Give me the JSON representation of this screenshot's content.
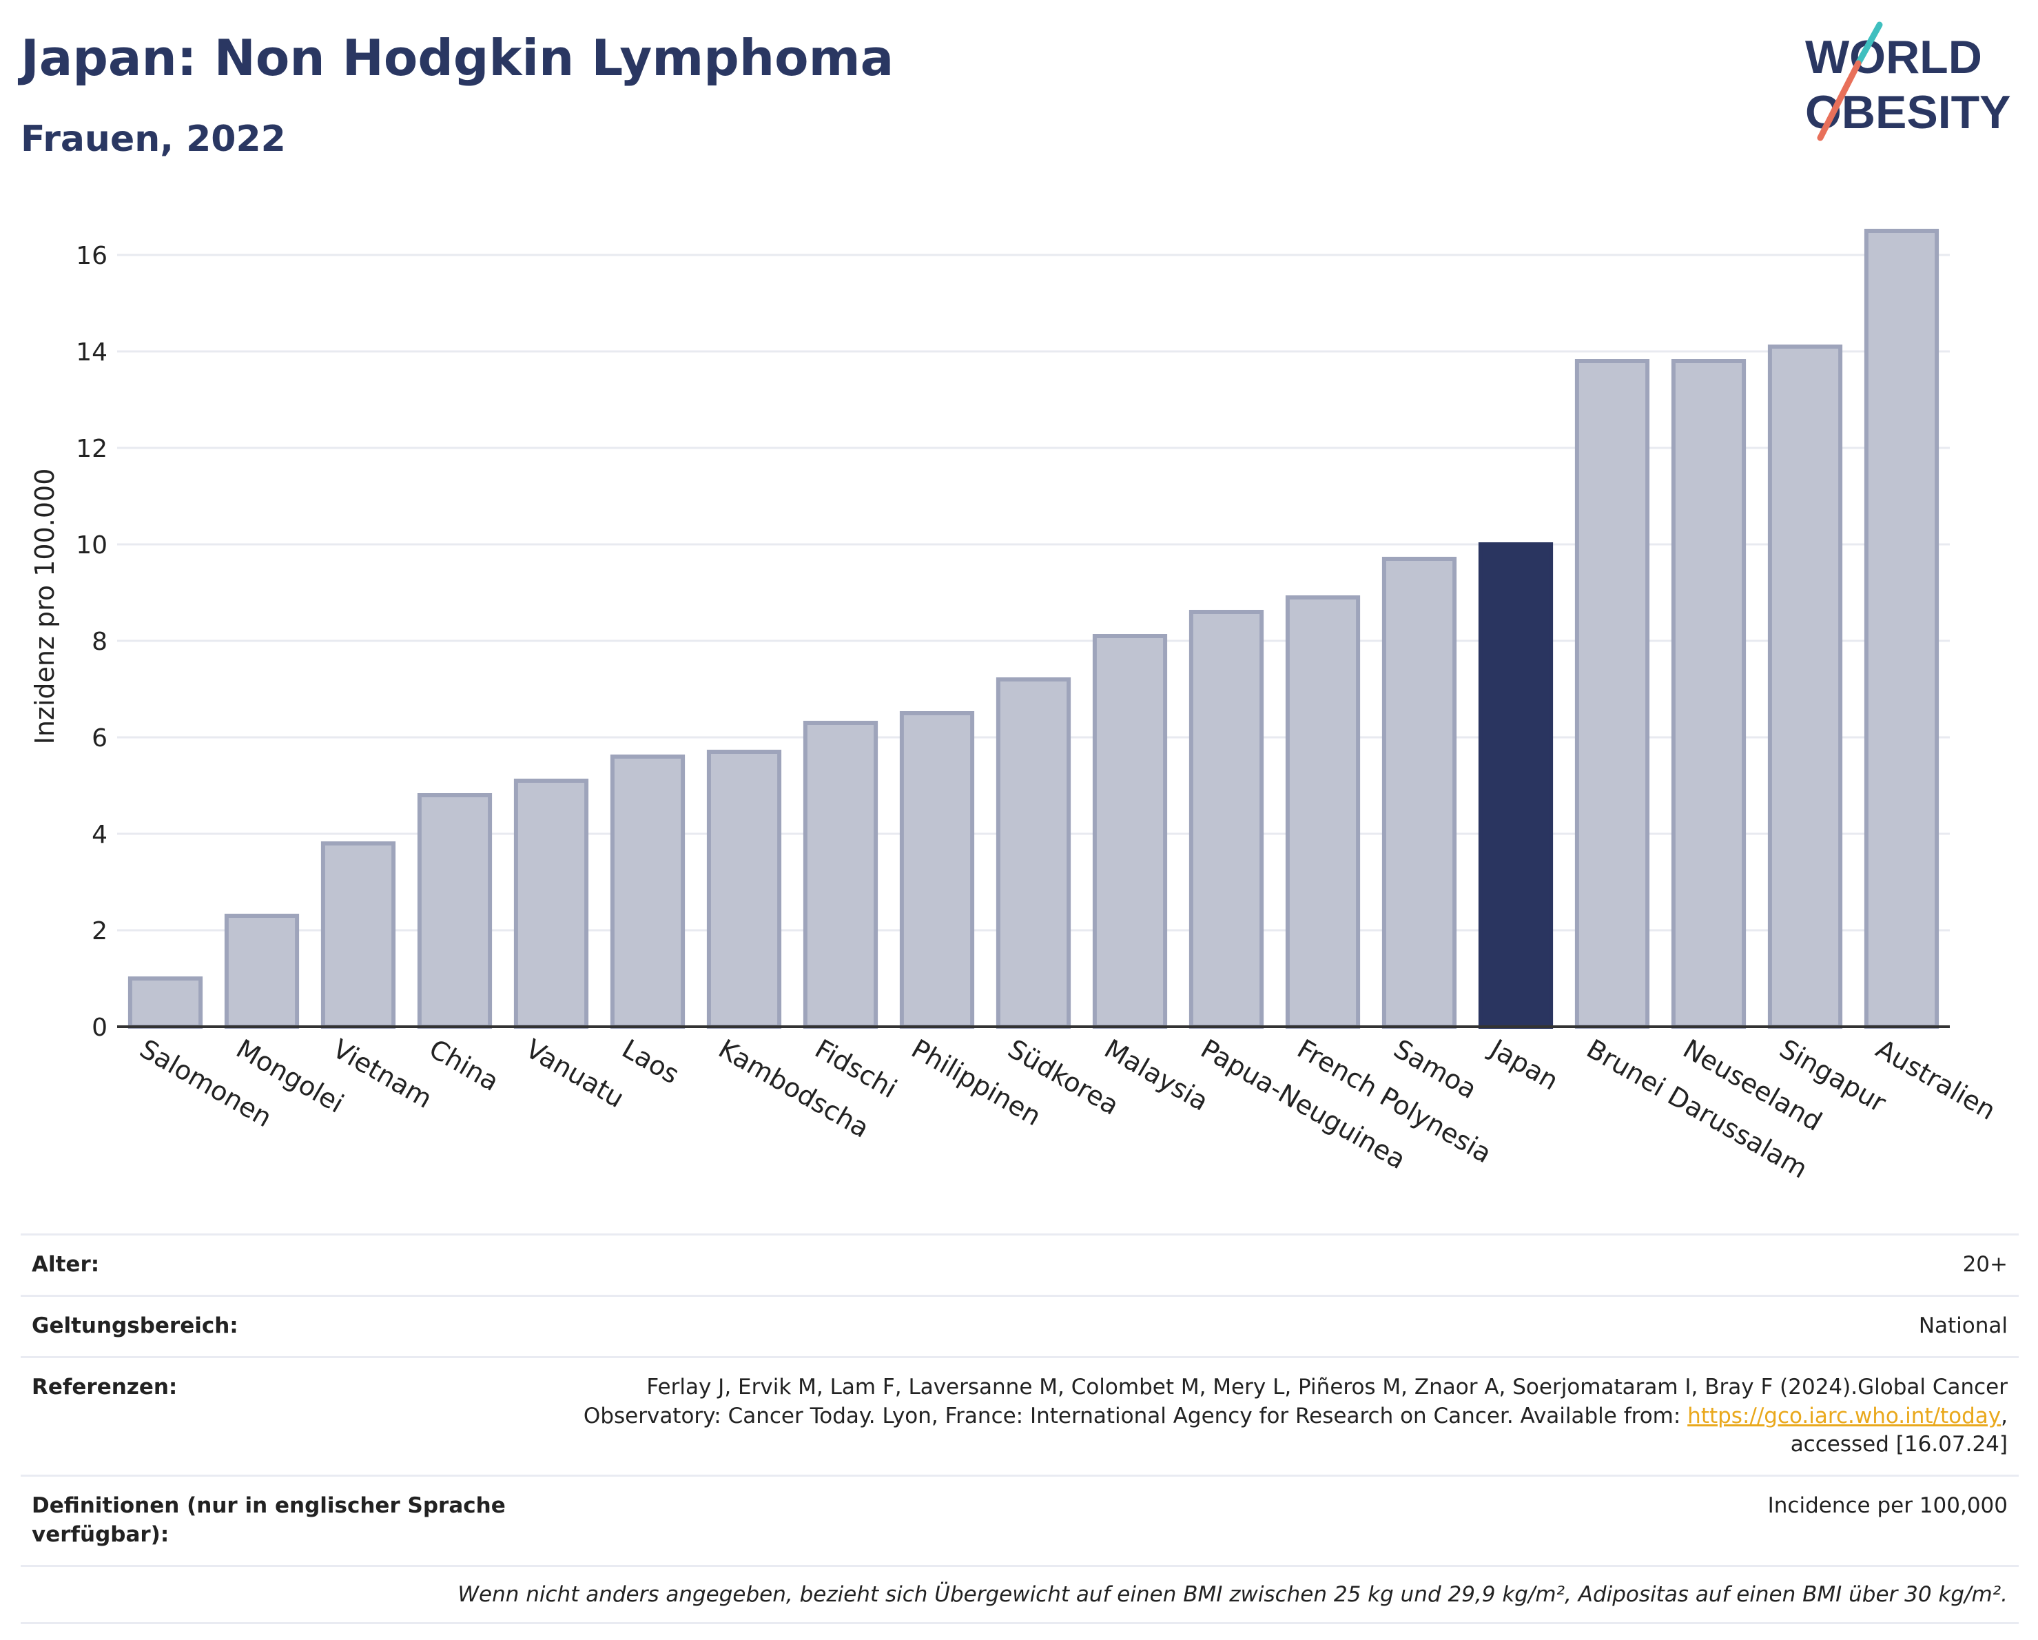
{
  "header": {
    "title": "Japan: Non Hodgkin Lymphoma",
    "subtitle": "Frauen, 2022",
    "logo_line1": "WORLD",
    "logo_line2": "OBESITY"
  },
  "chart_data": {
    "type": "bar",
    "title": "Japan: Non Hodgkin Lymphoma",
    "subtitle": "Frauen, 2022",
    "ylabel": "Inzidenz pro 100.000",
    "xlabel": "",
    "ylim": [
      0,
      17
    ],
    "yticks": [
      0,
      2,
      4,
      6,
      8,
      10,
      12,
      14,
      16
    ],
    "grid": true,
    "categories": [
      "Salomonen",
      "Mongolei",
      "Vietnam",
      "China",
      "Vanuatu",
      "Laos",
      "Kambodscha",
      "Fidschi",
      "Philippinen",
      "Südkorea",
      "Malaysia",
      "Papua-Neuguinea",
      "French Polynesia",
      "Samoa",
      "Japan",
      "Brunei Darussalam",
      "Neuseeland",
      "Singapur",
      "Australien"
    ],
    "values": [
      1.0,
      2.3,
      3.8,
      4.8,
      5.1,
      5.6,
      5.7,
      6.3,
      6.5,
      7.2,
      8.1,
      8.6,
      8.9,
      9.7,
      10.0,
      13.8,
      13.8,
      14.1,
      16.5
    ],
    "highlight": "Japan",
    "colors": {
      "bar": "#bfc3d1",
      "bar_border": "#9ea4bb",
      "highlight": "#2a3560",
      "grid": "#e8eaf0",
      "axis": "#333333"
    }
  },
  "meta": {
    "age_label": "Alter:",
    "age_value": "20+",
    "scope_label": "Geltungsbereich:",
    "scope_value": "National",
    "ref_label": "Referenzen:",
    "ref_text1": "Ferlay J, Ervik M, Lam F, Laversanne M, Colombet M, Mery L, Piñeros M, Znaor A, Soerjomataram I, Bray F (2024).Global Cancer Observatory: Cancer Today. Lyon, France: International Agency for Research on Cancer. Available from: ",
    "ref_link": "https://gco.iarc.who.int/today",
    "ref_text2": ", accessed [16.07.24]",
    "def_label": "Definitionen (nur in englischer Sprache verfügbar):",
    "def_value": "Incidence per 100,000",
    "note": "Wenn nicht anders angegeben, bezieht sich Übergewicht auf einen BMI zwischen 25 kg und 29,9 kg/m², Adipositas auf einen BMI über 30 kg/m²."
  }
}
